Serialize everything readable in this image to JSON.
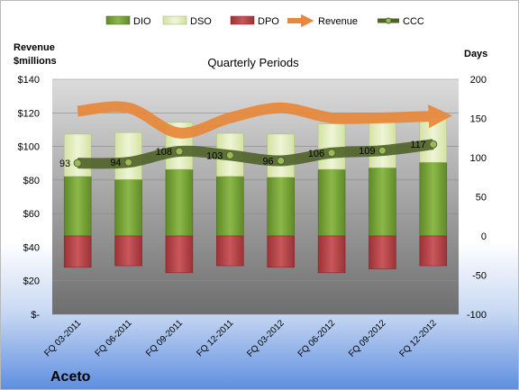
{
  "company": "Aceto",
  "chart_data": {
    "type": "bar",
    "title": "Quarterly Periods",
    "left_axis_title": [
      "Revenue",
      "$millions"
    ],
    "right_axis_title": "Days",
    "left_ticks": [
      "$-",
      "$20",
      "$40",
      "$60",
      "$80",
      "$100",
      "$120",
      "$140"
    ],
    "right_ticks": [
      "-100",
      "-50",
      "0",
      "50",
      "100",
      "150",
      "200"
    ],
    "left_ylim": [
      0,
      140
    ],
    "right_ylim": [
      -100,
      200
    ],
    "categories": [
      "FQ 03-2011",
      "FQ 06-2011",
      "FQ 09-2011",
      "FQ 12-2011",
      "FQ 03-2012",
      "FQ 06-2012",
      "FQ 09-2012",
      "FQ 12-2012"
    ],
    "legend": [
      "DIO",
      "DSO",
      "DPO",
      "Revenue",
      "CCC"
    ],
    "legend_position": "top",
    "series": [
      {
        "name": "DIO",
        "axis": "right",
        "kind": "stacked-bar",
        "color": "#77a036",
        "values": [
          76,
          72,
          85,
          76,
          75,
          85,
          87,
          94
        ]
      },
      {
        "name": "DSO",
        "axis": "right",
        "kind": "stacked-bar",
        "color": "#e3eec2",
        "values": [
          54,
          60,
          60,
          55,
          55,
          58,
          60,
          57
        ]
      },
      {
        "name": "DPO",
        "axis": "right",
        "kind": "negative-bar",
        "color": "#b5464a",
        "values": [
          -40,
          -38,
          -47,
          -38,
          -40,
          -47,
          -42,
          -38
        ]
      },
      {
        "name": "Revenue",
        "axis": "left",
        "kind": "line",
        "color": "#e8883a",
        "values": [
          121,
          123,
          108,
          117,
          123,
          117,
          117,
          118
        ]
      },
      {
        "name": "CCC",
        "axis": "right",
        "kind": "line",
        "color": "#4f6228",
        "values": [
          93,
          94,
          108,
          103,
          96,
          106,
          109,
          117
        ],
        "labels": [
          "93",
          "94",
          "108",
          "103",
          "96",
          "106",
          "109",
          "117"
        ]
      }
    ]
  }
}
